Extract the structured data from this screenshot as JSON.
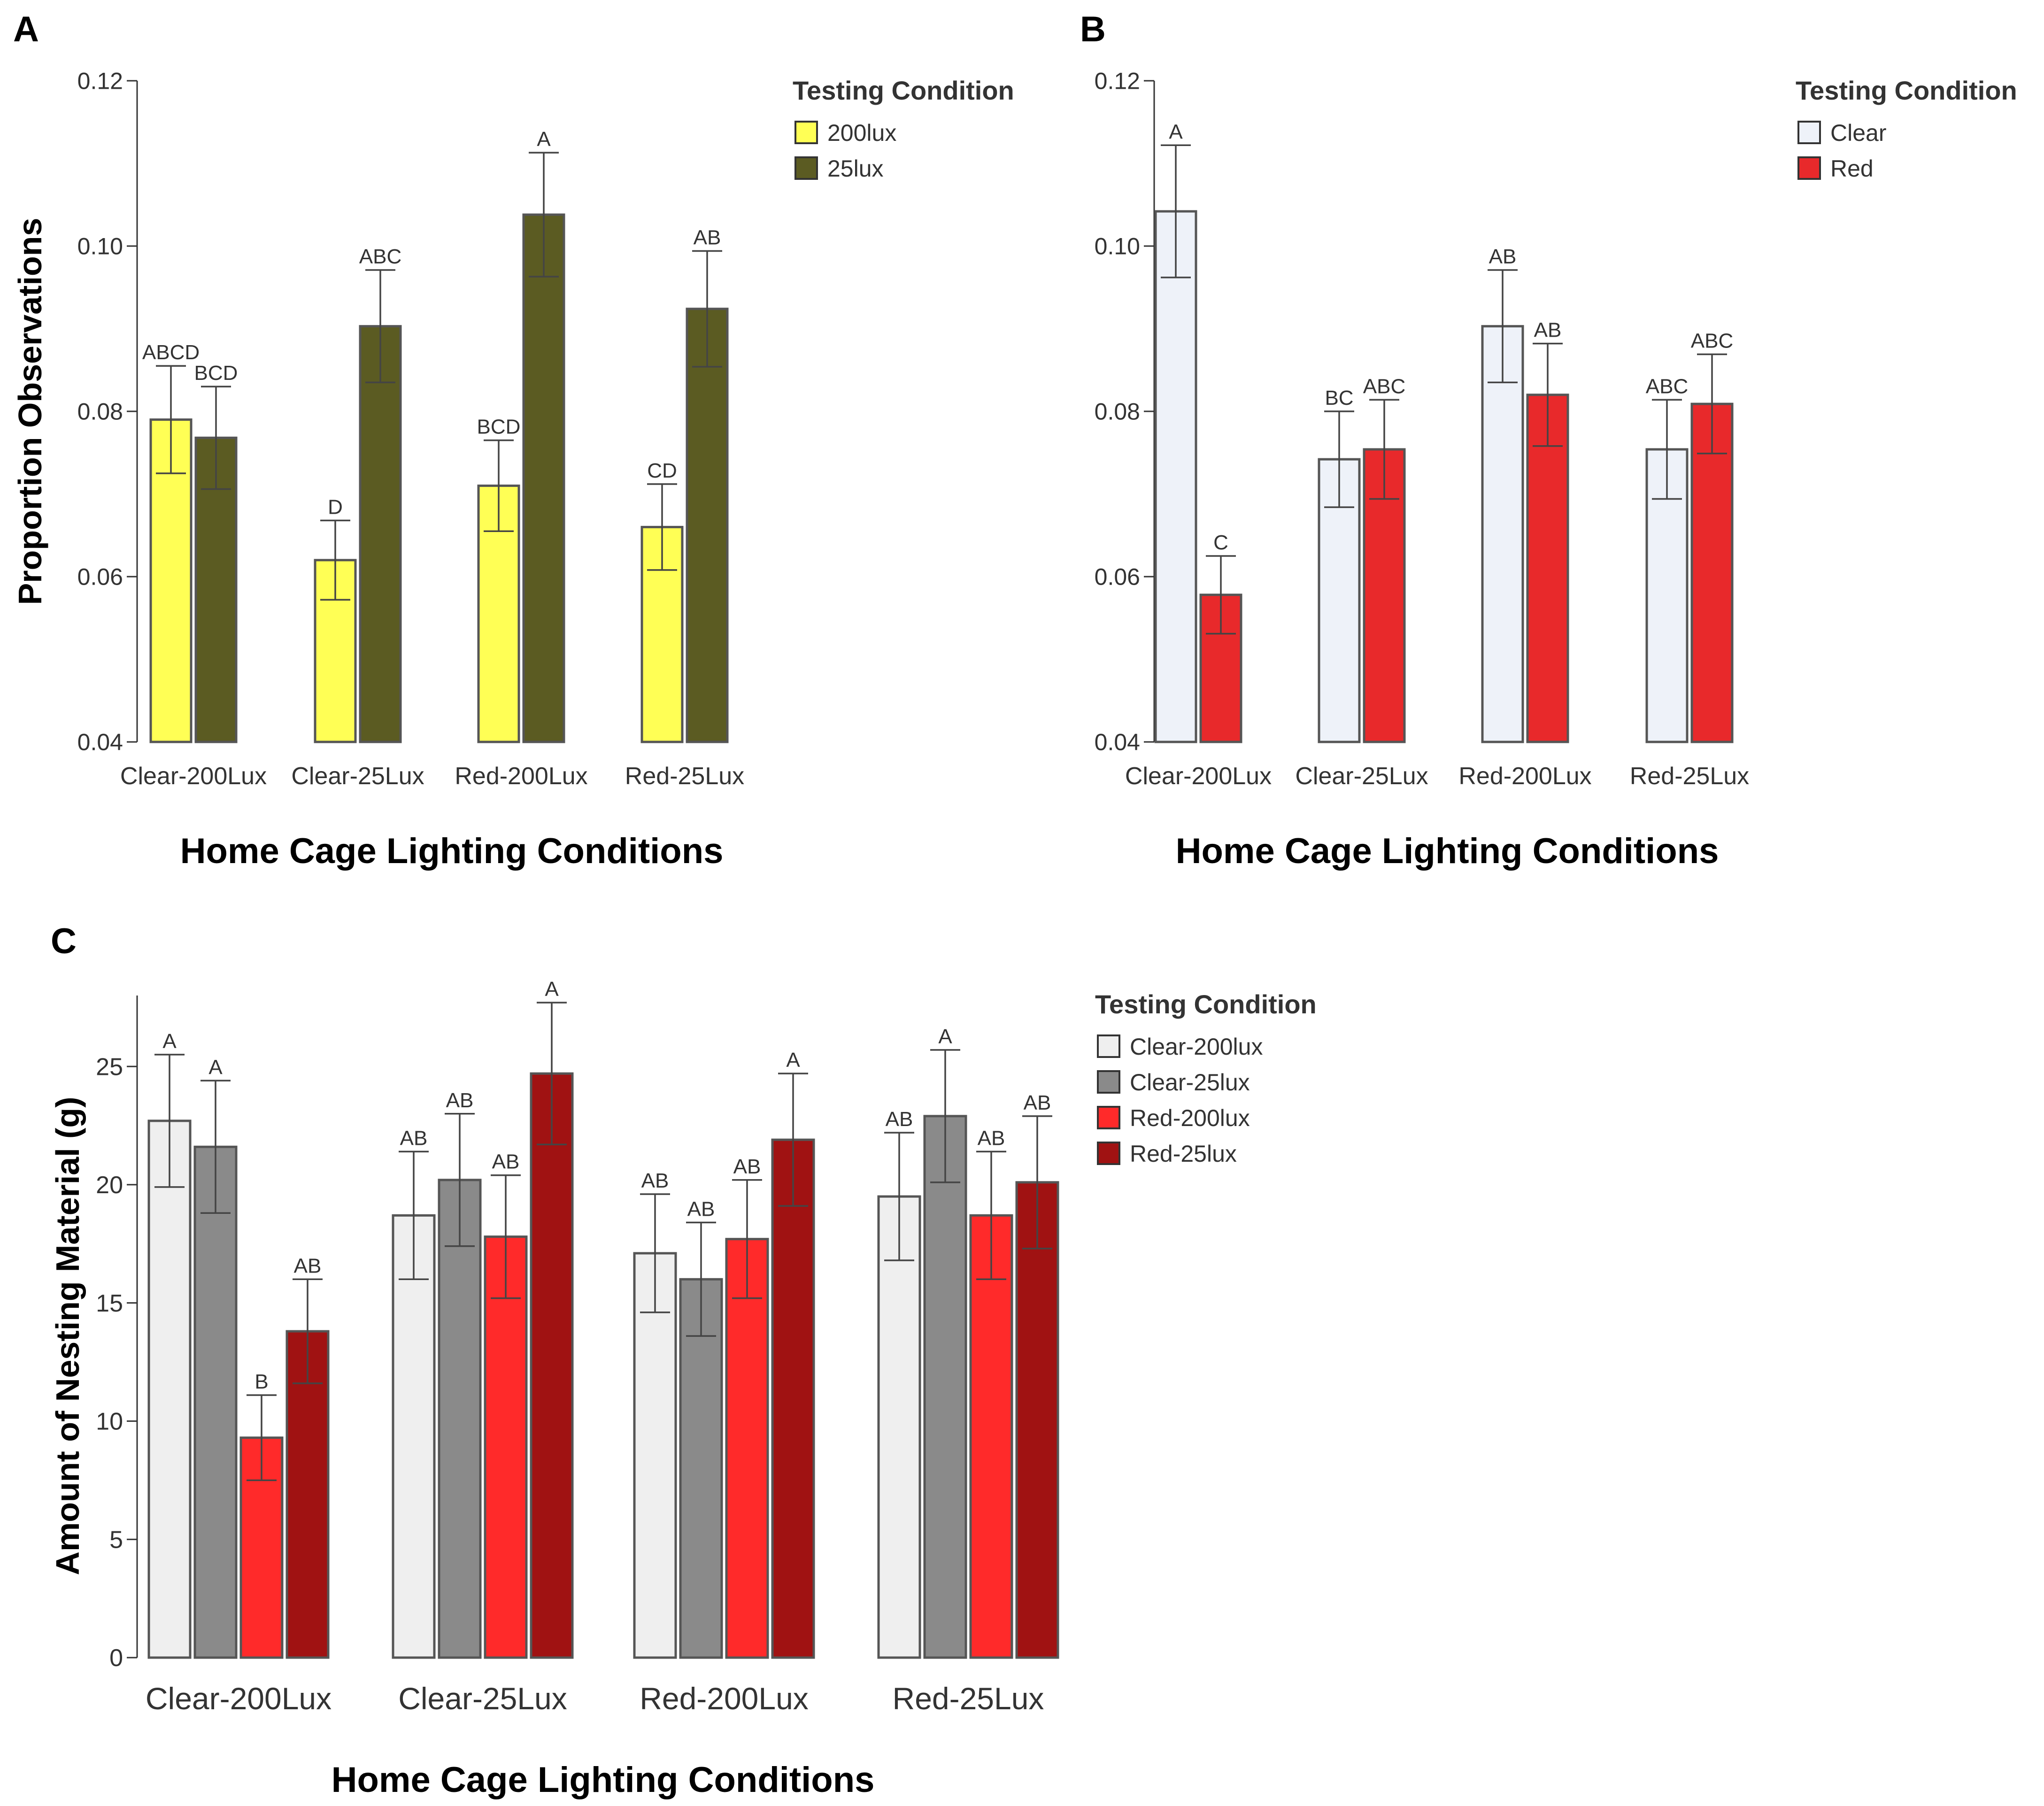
{
  "chart_data": [
    {
      "panel_label": "A",
      "type": "bar",
      "title": "",
      "xlabel": "Home Cage Lighting Conditions",
      "ylabel": "Proportion Observations",
      "ylim": [
        0.04,
        0.12
      ],
      "yticks": [
        "0.04",
        "0.06",
        "0.08",
        "0.10",
        "0.12"
      ],
      "categories": [
        "Clear-200Lux",
        "Clear-25Lux",
        "Red-200Lux",
        "Red-25Lux"
      ],
      "legend_title": "Testing Condition",
      "legend_position": "top-right",
      "series": [
        {
          "name": "200lux",
          "color": "#ffff55",
          "values": [
            0.079,
            0.062,
            0.071,
            0.066
          ],
          "errors": [
            0.0065,
            0.0048,
            0.0055,
            0.0052
          ],
          "letters": [
            "ABCD",
            "D",
            "BCD",
            "CD"
          ]
        },
        {
          "name": "25lux",
          "color": "#5b5b22",
          "values": [
            0.0768,
            0.0903,
            0.1038,
            0.0924
          ],
          "errors": [
            0.0062,
            0.0068,
            0.0075,
            0.007
          ],
          "letters": [
            "BCD",
            "ABC",
            "A",
            "AB"
          ]
        }
      ]
    },
    {
      "panel_label": "B",
      "type": "bar",
      "title": "",
      "xlabel": "Home Cage Lighting Conditions",
      "ylabel": "",
      "ylim": [
        0.04,
        0.12
      ],
      "yticks": [
        "0.04",
        "0.06",
        "0.08",
        "0.10",
        "0.12"
      ],
      "categories": [
        "Clear-200Lux",
        "Clear-25Lux",
        "Red-200Lux",
        "Red-25Lux"
      ],
      "legend_title": "Testing Condition",
      "legend_position": "top-right",
      "series": [
        {
          "name": "Clear",
          "color": "#eef2f9",
          "values": [
            0.1042,
            0.0742,
            0.0903,
            0.0754
          ],
          "errors": [
            0.008,
            0.0058,
            0.0068,
            0.006
          ],
          "letters": [
            "A",
            "BC",
            "AB",
            "ABC"
          ]
        },
        {
          "name": "Red",
          "color": "#e8292b",
          "values": [
            0.0578,
            0.0754,
            0.082,
            0.0809
          ],
          "errors": [
            0.0047,
            0.006,
            0.0062,
            0.006
          ],
          "letters": [
            "C",
            "ABC",
            "AB",
            "ABC"
          ]
        }
      ]
    },
    {
      "panel_label": "C",
      "type": "bar",
      "title": "",
      "xlabel": "Home Cage Lighting Conditions",
      "ylabel": "Amount of Nesting Material (g)",
      "ylim": [
        0,
        28
      ],
      "yticks": [
        "0",
        "5",
        "10",
        "15",
        "20",
        "25"
      ],
      "categories": [
        "Clear-200Lux",
        "Clear-25Lux",
        "Red-200Lux",
        "Red-25Lux"
      ],
      "legend_title": "Testing Condition",
      "legend_position": "right",
      "series": [
        {
          "name": "Clear-200lux",
          "color": "#efefef",
          "values": [
            22.7,
            18.7,
            17.1,
            19.5
          ],
          "errors": [
            2.8,
            2.7,
            2.5,
            2.7
          ],
          "letters": [
            "A",
            "AB",
            "AB",
            "AB"
          ]
        },
        {
          "name": "Clear-25lux",
          "color": "#8a8a8a",
          "values": [
            21.6,
            20.2,
            16.0,
            22.9
          ],
          "errors": [
            2.8,
            2.8,
            2.4,
            2.8
          ],
          "letters": [
            "A",
            "AB",
            "AB",
            "A"
          ]
        },
        {
          "name": "Red-200lux",
          "color": "#ff2a2a",
          "values": [
            9.3,
            17.8,
            17.7,
            18.7
          ],
          "errors": [
            1.8,
            2.6,
            2.5,
            2.7
          ],
          "letters": [
            "B",
            "AB",
            "AB",
            "AB"
          ]
        },
        {
          "name": "Red-25lux",
          "color": "#a01212",
          "values": [
            13.8,
            24.7,
            21.9,
            20.1
          ],
          "errors": [
            2.2,
            3.0,
            2.8,
            2.8
          ],
          "letters": [
            "AB",
            "A",
            "A",
            "AB"
          ]
        }
      ]
    }
  ]
}
